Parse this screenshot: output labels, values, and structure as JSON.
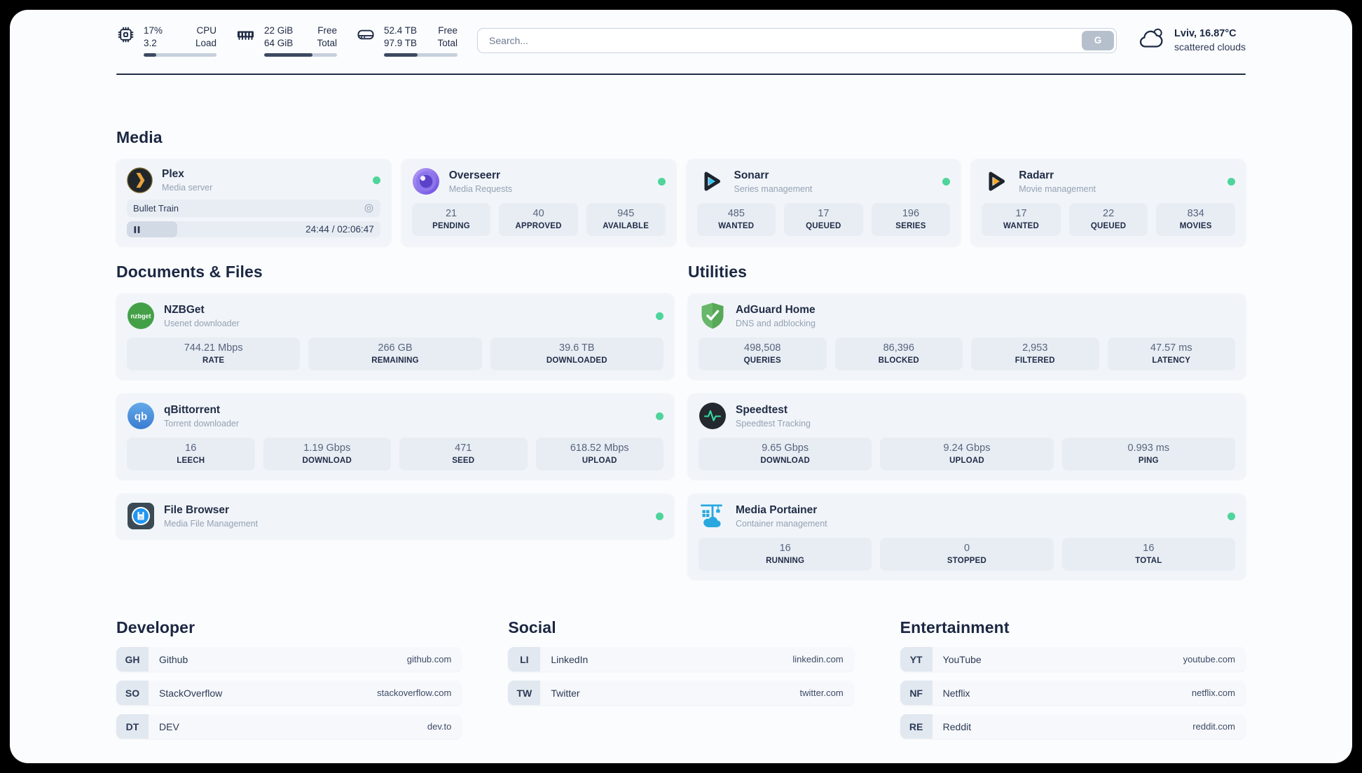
{
  "theme": {
    "status_online": "#4fd49b",
    "page_background": "#fbfcfe",
    "card_background": "#f1f5f9",
    "divider_color": "#202c46",
    "plex_accent": "#e8a33d"
  },
  "topbar": {
    "widgets": [
      {
        "icon": "cpu-chip-icon",
        "value1": "17%",
        "label1": "CPU",
        "value2": "3.2",
        "label2": "Load",
        "progress_pct": 17
      },
      {
        "icon": "memory-icon",
        "value1": "22 GiB",
        "label1": "Free",
        "value2": "64 GiB",
        "label2": "Total",
        "progress_pct": 66
      },
      {
        "icon": "disk-icon",
        "value1": "52.4 TB",
        "label1": "Free",
        "value2": "97.9 TB",
        "label2": "Total",
        "progress_pct": 46
      }
    ],
    "search": {
      "placeholder": "Search...",
      "button_label": "G"
    },
    "weather": {
      "location_temp": "Lviv, 16.87°C",
      "condition": "scattered clouds"
    }
  },
  "media": {
    "heading": "Media",
    "plex": {
      "icon": "plex-icon",
      "title": "Plex",
      "subtitle": "Media server",
      "now_playing": "Bullet Train",
      "time": "24:44 / 02:06:47",
      "progress_pct": 20
    },
    "overseerr": {
      "icon": "overseerr-icon",
      "title": "Overseerr",
      "subtitle": "Media Requests",
      "stats": [
        {
          "value": "21",
          "label": "PENDING"
        },
        {
          "value": "40",
          "label": "APPROVED"
        },
        {
          "value": "945",
          "label": "AVAILABLE"
        }
      ]
    },
    "sonarr": {
      "icon": "sonarr-icon",
      "title": "Sonarr",
      "subtitle": "Series management",
      "stats": [
        {
          "value": "485",
          "label": "WANTED"
        },
        {
          "value": "17",
          "label": "QUEUED"
        },
        {
          "value": "196",
          "label": "SERIES"
        }
      ]
    },
    "radarr": {
      "icon": "radarr-icon",
      "title": "Radarr",
      "subtitle": "Movie management",
      "stats": [
        {
          "value": "17",
          "label": "WANTED"
        },
        {
          "value": "22",
          "label": "QUEUED"
        },
        {
          "value": "834",
          "label": "MOVIES"
        }
      ]
    }
  },
  "documents": {
    "heading": "Documents & Files",
    "nzbget": {
      "icon": "nzbget-icon",
      "title": "NZBGet",
      "subtitle": "Usenet downloader",
      "stats": [
        {
          "value": "744.21 Mbps",
          "label": "RATE"
        },
        {
          "value": "266 GB",
          "label": "REMAINING"
        },
        {
          "value": "39.6 TB",
          "label": "DOWNLOADED"
        }
      ]
    },
    "qbittorrent": {
      "icon": "qbittorrent-icon",
      "title": "qBittorrent",
      "subtitle": "Torrent downloader",
      "stats": [
        {
          "value": "16",
          "label": "LEECH"
        },
        {
          "value": "1.19 Gbps",
          "label": "DOWNLOAD"
        },
        {
          "value": "471",
          "label": "SEED"
        },
        {
          "value": "618.52 Mbps",
          "label": "UPLOAD"
        }
      ]
    },
    "filebrowser": {
      "icon": "filebrowser-icon",
      "title": "File Browser",
      "subtitle": "Media File Management"
    }
  },
  "utilities": {
    "heading": "Utilities",
    "adguard": {
      "icon": "adguard-icon",
      "title": "AdGuard Home",
      "subtitle": "DNS and adblocking",
      "stats": [
        {
          "value": "498,508",
          "label": "QUERIES"
        },
        {
          "value": "86,396",
          "label": "BLOCKED"
        },
        {
          "value": "2,953",
          "label": "FILTERED"
        },
        {
          "value": "47.57 ms",
          "label": "LATENCY"
        }
      ]
    },
    "speedtest": {
      "icon": "speedtest-icon",
      "title": "Speedtest",
      "subtitle": "Speedtest Tracking",
      "stats": [
        {
          "value": "9.65 Gbps",
          "label": "DOWNLOAD"
        },
        {
          "value": "9.24 Gbps",
          "label": "UPLOAD"
        },
        {
          "value": "0.993 ms",
          "label": "PING"
        }
      ]
    },
    "portainer": {
      "icon": "portainer-icon",
      "title": "Media Portainer",
      "subtitle": "Container management",
      "stats": [
        {
          "value": "16",
          "label": "RUNNING"
        },
        {
          "value": "0",
          "label": "STOPPED"
        },
        {
          "value": "16",
          "label": "TOTAL"
        }
      ]
    }
  },
  "bookmarks": [
    {
      "heading": "Developer",
      "links": [
        {
          "abbr": "GH",
          "name": "Github",
          "url": "github.com"
        },
        {
          "abbr": "SO",
          "name": "StackOverflow",
          "url": "stackoverflow.com"
        },
        {
          "abbr": "DT",
          "name": "DEV",
          "url": "dev.to"
        }
      ]
    },
    {
      "heading": "Social",
      "links": [
        {
          "abbr": "LI",
          "name": "LinkedIn",
          "url": "linkedin.com"
        },
        {
          "abbr": "TW",
          "name": "Twitter",
          "url": "twitter.com"
        }
      ]
    },
    {
      "heading": "Entertainment",
      "links": [
        {
          "abbr": "YT",
          "name": "YouTube",
          "url": "youtube.com"
        },
        {
          "abbr": "NF",
          "name": "Netflix",
          "url": "netflix.com"
        },
        {
          "abbr": "RE",
          "name": "Reddit",
          "url": "reddit.com"
        }
      ]
    }
  ]
}
